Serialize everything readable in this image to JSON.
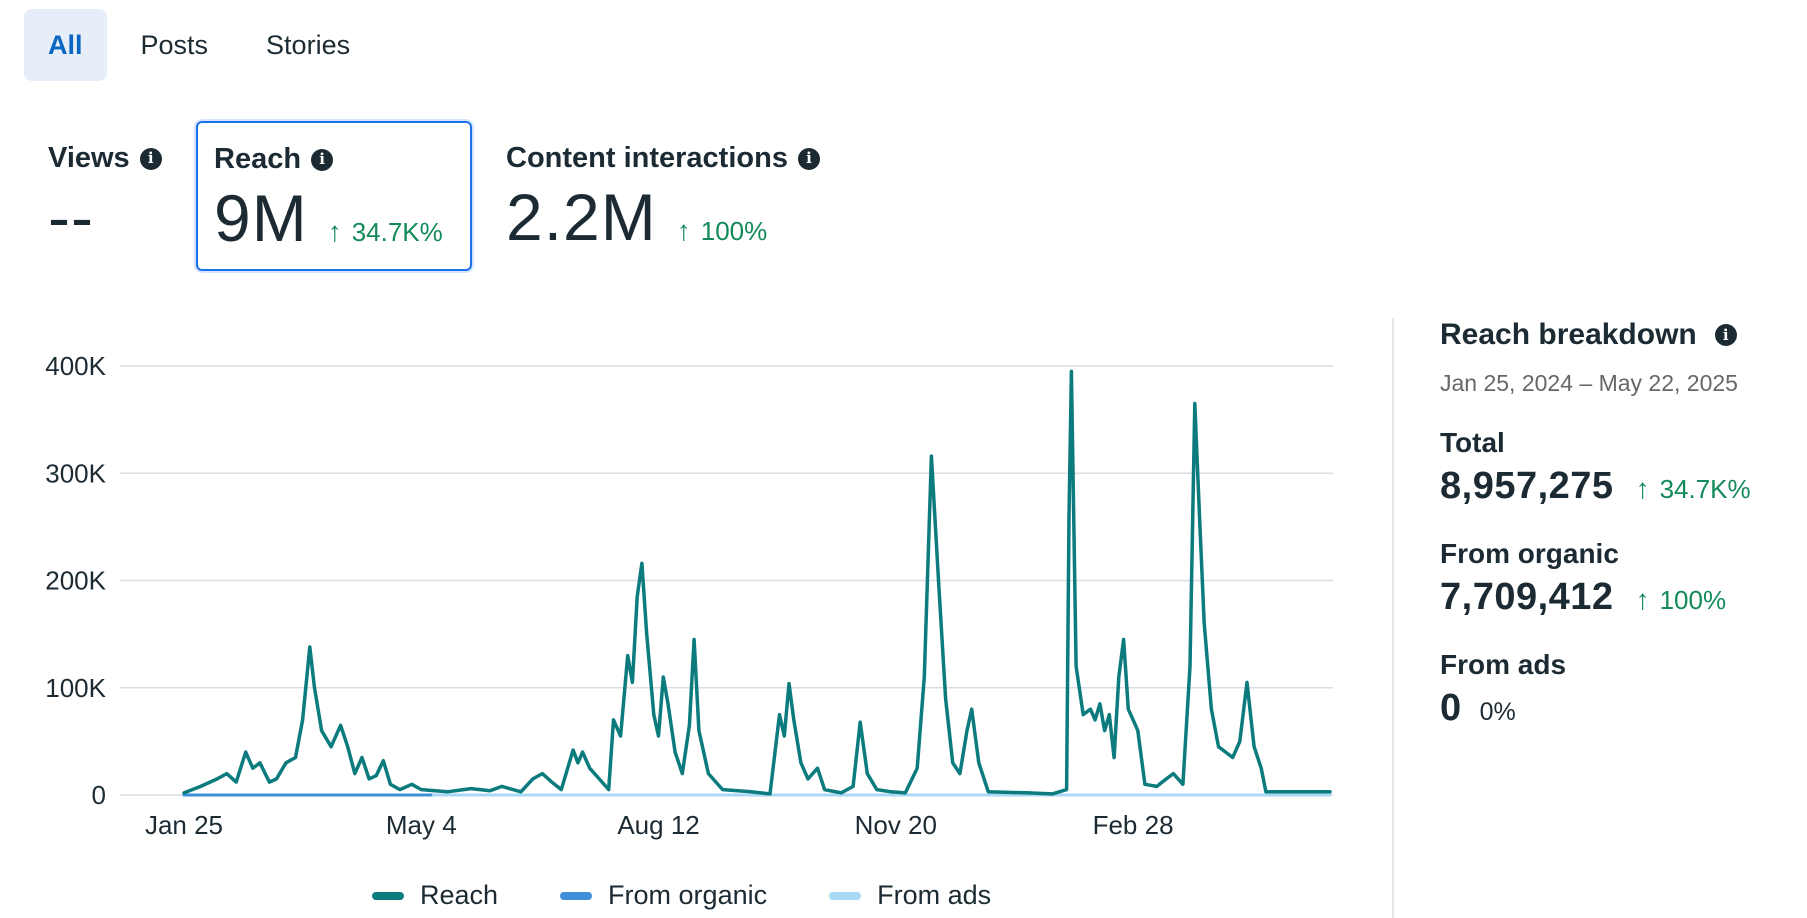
{
  "tabs": [
    {
      "label": "All",
      "active": true
    },
    {
      "label": "Posts",
      "active": false
    },
    {
      "label": "Stories",
      "active": false
    }
  ],
  "metrics": {
    "views": {
      "label": "Views",
      "value": "--",
      "delta": ""
    },
    "reach": {
      "label": "Reach",
      "value": "9M",
      "delta": "34.7K%",
      "selected": true
    },
    "interactions": {
      "label": "Content interactions",
      "value": "2.2M",
      "delta": "100%"
    }
  },
  "legend": [
    {
      "name": "Reach",
      "color": "#0c7b7e"
    },
    {
      "name": "From organic",
      "color": "#3e8fd8"
    },
    {
      "name": "From ads",
      "color": "#a8d8f5"
    }
  ],
  "panel": {
    "title": "Reach breakdown",
    "date_range": "Jan 25, 2024 – May 22, 2025",
    "total": {
      "label": "Total",
      "value": "8,957,275",
      "delta": "34.7K%"
    },
    "organic": {
      "label": "From organic",
      "value": "7,709,412",
      "delta": "100%"
    },
    "ads": {
      "label": "From ads",
      "value": "0",
      "delta": "0%"
    }
  },
  "chart_data": {
    "type": "line",
    "title": "",
    "xlabel": "",
    "ylabel": "",
    "x_range": [
      "2024-01-25",
      "2025-05-22"
    ],
    "x_ticks": [
      "Jan 25",
      "May 4",
      "Aug 12",
      "Nov 20",
      "Feb 28"
    ],
    "y_ticks": [
      "0",
      "100K",
      "200K",
      "300K",
      "400K"
    ],
    "ylim": [
      0,
      400000
    ],
    "grid": true,
    "legend_position": "bottom",
    "series": [
      {
        "name": "Reach",
        "color": "#0c7b7e",
        "points": [
          [
            "2024-01-25",
            2000
          ],
          [
            "2024-02-01",
            8000
          ],
          [
            "2024-02-08",
            15000
          ],
          [
            "2024-02-12",
            20000
          ],
          [
            "2024-02-16",
            12000
          ],
          [
            "2024-02-20",
            40000
          ],
          [
            "2024-02-23",
            25000
          ],
          [
            "2024-02-26",
            30000
          ],
          [
            "2024-03-01",
            12000
          ],
          [
            "2024-03-04",
            15000
          ],
          [
            "2024-03-08",
            30000
          ],
          [
            "2024-03-12",
            35000
          ],
          [
            "2024-03-15",
            70000
          ],
          [
            "2024-03-18",
            138000
          ],
          [
            "2024-03-20",
            100000
          ],
          [
            "2024-03-23",
            60000
          ],
          [
            "2024-03-27",
            45000
          ],
          [
            "2024-03-31",
            65000
          ],
          [
            "2024-04-03",
            45000
          ],
          [
            "2024-04-06",
            20000
          ],
          [
            "2024-04-09",
            35000
          ],
          [
            "2024-04-12",
            15000
          ],
          [
            "2024-04-15",
            18000
          ],
          [
            "2024-04-18",
            32000
          ],
          [
            "2024-04-21",
            10000
          ],
          [
            "2024-04-25",
            5000
          ],
          [
            "2024-04-30",
            10000
          ],
          [
            "2024-05-04",
            5000
          ],
          [
            "2024-05-15",
            3000
          ],
          [
            "2024-05-25",
            6000
          ],
          [
            "2024-06-02",
            4000
          ],
          [
            "2024-06-07",
            8000
          ],
          [
            "2024-06-15",
            3000
          ],
          [
            "2024-06-20",
            15000
          ],
          [
            "2024-06-24",
            20000
          ],
          [
            "2024-06-28",
            12000
          ],
          [
            "2024-07-02",
            5000
          ],
          [
            "2024-07-07",
            42000
          ],
          [
            "2024-07-09",
            30000
          ],
          [
            "2024-07-11",
            40000
          ],
          [
            "2024-07-14",
            25000
          ],
          [
            "2024-07-18",
            15000
          ],
          [
            "2024-07-22",
            5000
          ],
          [
            "2024-07-24",
            70000
          ],
          [
            "2024-07-27",
            55000
          ],
          [
            "2024-07-30",
            130000
          ],
          [
            "2024-08-01",
            105000
          ],
          [
            "2024-08-03",
            185000
          ],
          [
            "2024-08-05",
            216000
          ],
          [
            "2024-08-07",
            150000
          ],
          [
            "2024-08-10",
            75000
          ],
          [
            "2024-08-12",
            55000
          ],
          [
            "2024-08-14",
            110000
          ],
          [
            "2024-08-16",
            85000
          ],
          [
            "2024-08-19",
            40000
          ],
          [
            "2024-08-22",
            20000
          ],
          [
            "2024-08-25",
            65000
          ],
          [
            "2024-08-27",
            145000
          ],
          [
            "2024-08-29",
            60000
          ],
          [
            "2024-09-02",
            20000
          ],
          [
            "2024-09-08",
            5000
          ],
          [
            "2024-09-20",
            3000
          ],
          [
            "2024-09-28",
            1000
          ],
          [
            "2024-10-02",
            75000
          ],
          [
            "2024-10-04",
            55000
          ],
          [
            "2024-10-06",
            104000
          ],
          [
            "2024-10-08",
            70000
          ],
          [
            "2024-10-11",
            30000
          ],
          [
            "2024-10-14",
            15000
          ],
          [
            "2024-10-18",
            25000
          ],
          [
            "2024-10-21",
            5000
          ],
          [
            "2024-10-28",
            2000
          ],
          [
            "2024-11-02",
            8000
          ],
          [
            "2024-11-05",
            68000
          ],
          [
            "2024-11-08",
            20000
          ],
          [
            "2024-11-12",
            5000
          ],
          [
            "2024-11-18",
            3000
          ],
          [
            "2024-11-24",
            2000
          ],
          [
            "2024-11-29",
            25000
          ],
          [
            "2024-12-02",
            110000
          ],
          [
            "2024-12-05",
            316000
          ],
          [
            "2024-12-08",
            200000
          ],
          [
            "2024-12-11",
            90000
          ],
          [
            "2024-12-14",
            30000
          ],
          [
            "2024-12-17",
            20000
          ],
          [
            "2024-12-20",
            60000
          ],
          [
            "2024-12-22",
            80000
          ],
          [
            "2024-12-25",
            30000
          ],
          [
            "2024-12-29",
            3000
          ],
          [
            "2025-01-15",
            2000
          ],
          [
            "2025-01-25",
            1000
          ],
          [
            "2025-01-31",
            5000
          ],
          [
            "2025-02-01",
            260000
          ],
          [
            "2025-02-02",
            395000
          ],
          [
            "2025-02-04",
            120000
          ],
          [
            "2025-02-07",
            75000
          ],
          [
            "2025-02-10",
            80000
          ],
          [
            "2025-02-12",
            70000
          ],
          [
            "2025-02-14",
            85000
          ],
          [
            "2025-02-16",
            60000
          ],
          [
            "2025-02-18",
            75000
          ],
          [
            "2025-02-20",
            35000
          ],
          [
            "2025-02-22",
            110000
          ],
          [
            "2025-02-24",
            145000
          ],
          [
            "2025-02-26",
            80000
          ],
          [
            "2025-02-28",
            70000
          ],
          [
            "2025-03-02",
            60000
          ],
          [
            "2025-03-05",
            10000
          ],
          [
            "2025-03-10",
            8000
          ],
          [
            "2025-03-14",
            15000
          ],
          [
            "2025-03-17",
            20000
          ],
          [
            "2025-03-21",
            10000
          ],
          [
            "2025-03-24",
            120000
          ],
          [
            "2025-03-26",
            365000
          ],
          [
            "2025-03-28",
            260000
          ],
          [
            "2025-03-30",
            160000
          ],
          [
            "2025-04-02",
            80000
          ],
          [
            "2025-04-05",
            45000
          ],
          [
            "2025-04-08",
            40000
          ],
          [
            "2025-04-11",
            35000
          ],
          [
            "2025-04-14",
            50000
          ],
          [
            "2025-04-17",
            105000
          ],
          [
            "2025-04-20",
            45000
          ],
          [
            "2025-04-23",
            25000
          ],
          [
            "2025-04-25",
            3000
          ],
          [
            "2025-05-22",
            3000
          ]
        ]
      },
      {
        "name": "From organic",
        "color": "#3e8fd8",
        "points": [
          [
            "2024-01-25",
            0
          ],
          [
            "2024-05-08",
            0
          ]
        ]
      },
      {
        "name": "From ads",
        "color": "#a8d8f5",
        "points": [
          [
            "2024-01-25",
            0
          ],
          [
            "2025-05-22",
            0
          ]
        ]
      }
    ]
  }
}
